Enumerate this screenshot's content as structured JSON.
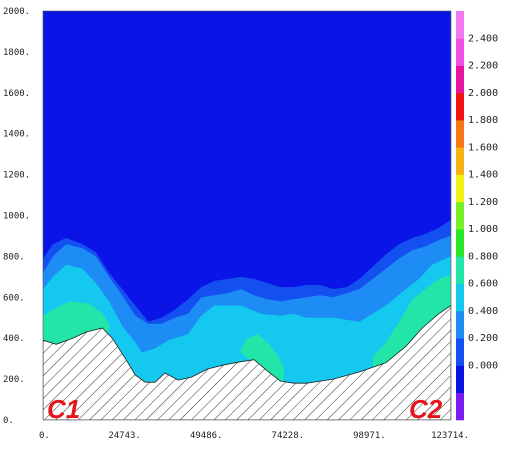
{
  "chart_data": {
    "type": "heatmap",
    "subtype": "filled-contour-section",
    "title": "",
    "xlabel": "",
    "ylabel": "",
    "xlim": [
      0,
      123714
    ],
    "ylim": [
      0,
      2000
    ],
    "x_ticks": [
      0,
      24743,
      49486,
      74228,
      98971,
      123714
    ],
    "x_tick_labels": [
      "0.",
      "24743.",
      "49486.",
      "74228.",
      "98971.",
      "123714."
    ],
    "y_ticks": [
      0,
      200,
      400,
      600,
      800,
      1000,
      1200,
      1400,
      1600,
      1800,
      2000
    ],
    "y_tick_labels": [
      "0.",
      "200.",
      "400.",
      "600.",
      "800.",
      "1000.",
      "1200.",
      "1400.",
      "1600.",
      "1800.",
      "2000."
    ],
    "corner_labels": {
      "left": "C1",
      "right": "C2"
    },
    "colorbar": {
      "levels": [
        {
          "label": "",
          "color": "#7a1cf0"
        },
        {
          "label": "0.000",
          "color": "#0a14e6"
        },
        {
          "label": "0.200",
          "color": "#1450f0"
        },
        {
          "label": "0.400",
          "color": "#1e8cf5"
        },
        {
          "label": "0.600",
          "color": "#14c8f0"
        },
        {
          "label": "0.800",
          "color": "#22e6a8"
        },
        {
          "label": "1.000",
          "color": "#28e628"
        },
        {
          "label": "1.200",
          "color": "#78f028"
        },
        {
          "label": "1.400",
          "color": "#f0f014"
        },
        {
          "label": "1.600",
          "color": "#f5b414"
        },
        {
          "label": "1.800",
          "color": "#f57814"
        },
        {
          "label": "2.000",
          "color": "#f01414"
        },
        {
          "label": "2.200",
          "color": "#e614a0"
        },
        {
          "label": "2.400",
          "color": "#f050e6"
        },
        {
          "label": "",
          "color": "#f078f0"
        }
      ]
    },
    "terrain": {
      "x": [
        0,
        4000,
        9000,
        13000,
        18000,
        21000,
        25000,
        28000,
        31000,
        34000,
        37000,
        41000,
        45000,
        50000,
        55000,
        60000,
        64000,
        68000,
        72000,
        76000,
        80000,
        88000,
        96000,
        104000,
        110000,
        115000,
        120000,
        123714
      ],
      "y": [
        390,
        370,
        400,
        430,
        450,
        400,
        300,
        220,
        185,
        185,
        230,
        195,
        210,
        250,
        270,
        285,
        295,
        240,
        190,
        180,
        180,
        200,
        235,
        280,
        360,
        450,
        520,
        560
      ]
    },
    "bands": [
      {
        "level": "0.800",
        "color": "#22e6a8",
        "polygons": [
          {
            "top": {
              "x": [
                0,
                3000,
                8000,
                14000,
                18000,
                20000
              ],
              "y": [
                510,
                540,
                580,
                570,
                520,
                470
              ]
            },
            "bottom": {
              "x": [
                20000,
                13000,
                9000,
                4000,
                0
              ],
              "y": [
                420,
                430,
                400,
                370,
                390
              ]
            }
          },
          {
            "top": {
              "x": [
                60000,
                62000,
                65000,
                68000,
                71000,
                73000
              ],
              "y": [
                350,
                400,
                420,
                380,
                320,
                260
              ]
            },
            "bottom": {
              "x": [
                73000,
                72000,
                68000,
                64000,
                62000,
                60000
              ],
              "y": [
                190,
                190,
                240,
                295,
                300,
                330
              ]
            }
          },
          {
            "top": {
              "x": [
                100000,
                104000,
                108000,
                112000,
                116000,
                120000,
                123714
              ],
              "y": [
                310,
                380,
                480,
                590,
                640,
                690,
                710
              ]
            },
            "bottom": {
              "x": [
                123714,
                120000,
                115000,
                110000,
                104000,
                100000
              ],
              "y": [
                560,
                520,
                450,
                360,
                280,
                250
              ]
            }
          }
        ]
      },
      {
        "level": "0.600",
        "color": "#14c8f0",
        "boundary": {
          "x": [
            0,
            3000,
            7000,
            12000,
            16000,
            20000,
            24000,
            28000,
            30000,
            34000,
            38000,
            44000,
            48000,
            52000,
            56000,
            60000,
            66000,
            72000,
            76000,
            80000,
            88000,
            96000,
            104000,
            110000,
            114000,
            118000,
            123714
          ],
          "y": [
            640,
            700,
            760,
            740,
            670,
            580,
            460,
            380,
            330,
            350,
            390,
            420,
            510,
            560,
            560,
            560,
            520,
            510,
            520,
            500,
            500,
            480,
            560,
            640,
            690,
            760,
            800
          ]
        }
      },
      {
        "level": "0.400",
        "color": "#1e8cf5",
        "boundary": {
          "x": [
            0,
            3000,
            7000,
            12000,
            16000,
            20000,
            24000,
            28000,
            32000,
            36000,
            40000,
            44000,
            48000,
            52000,
            56000,
            60000,
            64000,
            68000,
            72000,
            76000,
            80000,
            84000,
            88000,
            92000,
            96000,
            100000,
            104000,
            108000,
            112000,
            116000,
            120000,
            123714
          ],
          "y": [
            720,
            800,
            860,
            840,
            800,
            700,
            610,
            510,
            470,
            470,
            500,
            520,
            600,
            610,
            620,
            640,
            610,
            590,
            580,
            590,
            600,
            610,
            600,
            620,
            640,
            690,
            740,
            790,
            830,
            850,
            880,
            900
          ]
        }
      },
      {
        "level": "0.200",
        "color": "#1450f0",
        "boundary": {
          "x": [
            0,
            3000,
            7000,
            12000,
            16000,
            20000,
            24000,
            28000,
            32000,
            36000,
            40000,
            44000,
            48000,
            52000,
            56000,
            60000,
            64000,
            68000,
            72000,
            76000,
            80000,
            84000,
            88000,
            92000,
            96000,
            100000,
            104000,
            108000,
            112000,
            116000,
            120000,
            123714
          ],
          "y": [
            790,
            860,
            890,
            860,
            820,
            720,
            640,
            560,
            480,
            500,
            540,
            590,
            650,
            680,
            690,
            700,
            690,
            670,
            650,
            650,
            660,
            660,
            640,
            650,
            690,
            750,
            810,
            860,
            890,
            910,
            940,
            980
          ]
        }
      }
    ],
    "background_color": "#0a14e6",
    "terrain_fill": "hatched"
  }
}
